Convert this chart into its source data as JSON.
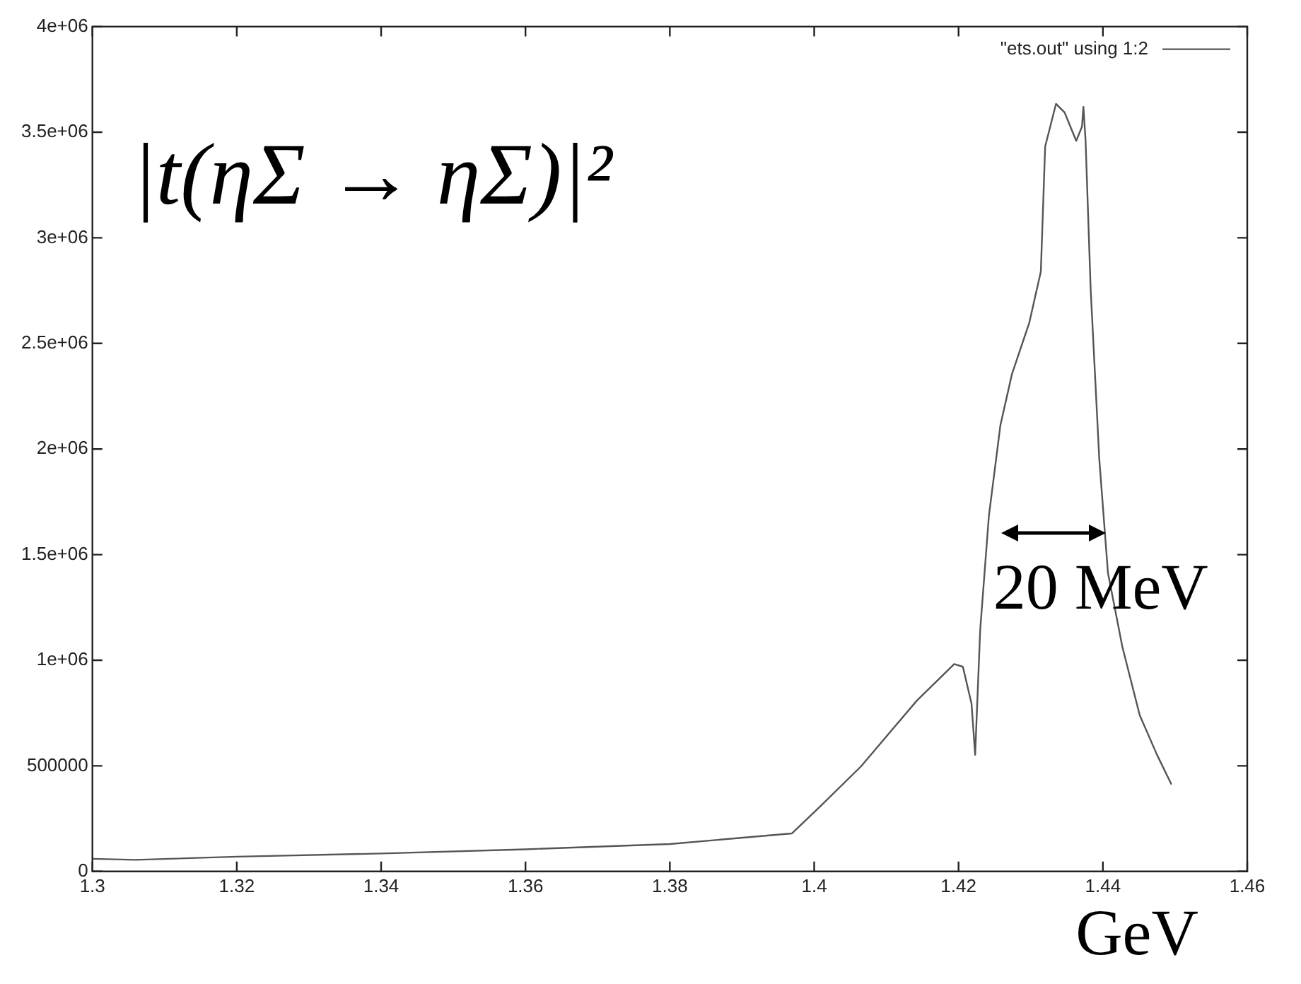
{
  "chart_data": {
    "type": "line",
    "title": "|t(ηΣ → ηΣ)|²",
    "xlabel": "GeV",
    "annotations": [
      "20 MeV"
    ],
    "series": [
      {
        "name": "\"ets.out\" using 1:2",
        "color": "#555555",
        "x": [
          1.3,
          1.306,
          1.32,
          1.34,
          1.36,
          1.38,
          1.3969,
          1.4009,
          1.4065,
          1.4142,
          1.4194,
          1.4206,
          1.4218,
          1.4223,
          1.423,
          1.4242,
          1.4258,
          1.4274,
          1.4298,
          1.4314,
          1.432,
          1.4335,
          1.4347,
          1.4363,
          1.4371,
          1.4373,
          1.4376,
          1.4383,
          1.4395,
          1.4407,
          1.4427,
          1.4451,
          1.4475,
          1.4495
        ],
        "values": [
          60000,
          55000,
          70000,
          85000,
          105000,
          130000,
          180000,
          310000,
          498000,
          808000,
          982000,
          969000,
          794000,
          552000,
          1144000,
          1682000,
          2113000,
          2355000,
          2598000,
          2840000,
          3432000,
          3634000,
          3593000,
          3459000,
          3526000,
          3620000,
          3459000,
          2759000,
          1952000,
          1413000,
          1063000,
          740000,
          552000,
          412000
        ]
      }
    ],
    "xlim": [
      1.3,
      1.46
    ],
    "xticks": [
      1.3,
      1.32,
      1.34,
      1.36,
      1.38,
      1.4,
      1.42,
      1.44,
      1.46
    ],
    "ylim": [
      0,
      4000000
    ],
    "yticks": [
      0,
      500000,
      {
        "value": 1000000,
        "label": "1e+06"
      },
      {
        "value": 1500000,
        "label": "1.5e+06"
      },
      {
        "value": 2000000,
        "label": "2e+06"
      },
      {
        "value": 2500000,
        "label": "2.5e+06"
      },
      {
        "value": 3000000,
        "label": "3e+06"
      },
      {
        "value": 3500000,
        "label": "3.5e+06"
      },
      {
        "value": 4000000,
        "label": "4e+06"
      }
    ],
    "grid": false,
    "legend": "top right",
    "marker": "none",
    "line_style": "solid"
  }
}
